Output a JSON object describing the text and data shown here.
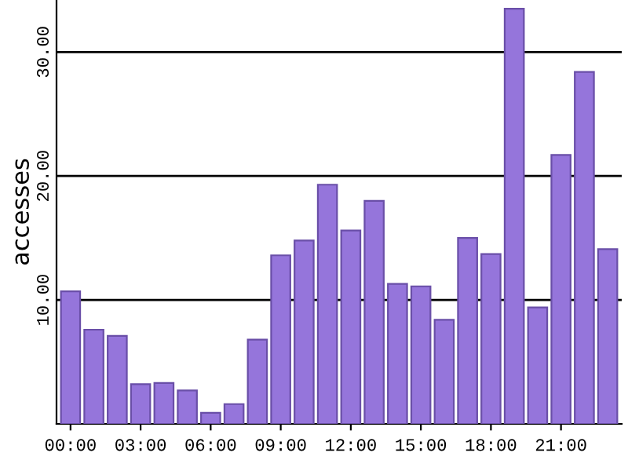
{
  "chart_data": {
    "type": "bar",
    "ylabel": "accesses",
    "categories": [
      "00:00",
      null,
      null,
      "03:00",
      null,
      null,
      "06:00",
      null,
      null,
      "09:00",
      null,
      null,
      "12:00",
      null,
      null,
      "15:00",
      null,
      null,
      "18:00",
      null,
      null,
      "21:00",
      null,
      null
    ],
    "values": [
      10.7,
      7.6,
      7.1,
      3.2,
      3.3,
      2.7,
      0.9,
      1.6,
      6.8,
      13.6,
      14.8,
      19.3,
      15.6,
      18.0,
      11.3,
      11.1,
      8.4,
      15.0,
      13.7,
      33.5,
      9.4,
      21.7,
      28.4,
      14.1
    ],
    "color": "#9575db",
    "ylim": [
      0,
      34.2
    ],
    "yticks": [
      {
        "value": 10,
        "label": "10.00"
      },
      {
        "value": 20,
        "label": "20.00"
      },
      {
        "value": 30,
        "label": "30.00"
      }
    ],
    "grid": "y"
  }
}
